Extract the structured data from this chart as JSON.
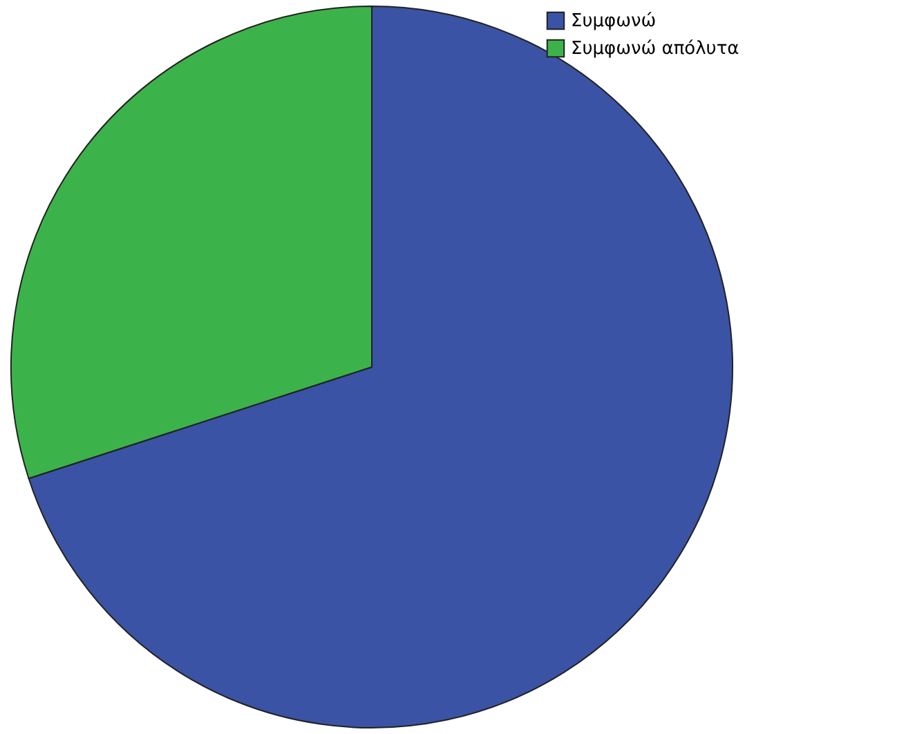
{
  "chart_data": {
    "type": "pie",
    "categories": [
      "Συμφωνώ",
      "Συμφωνώ απόλυτα"
    ],
    "values": [
      70,
      30
    ],
    "colors": [
      "#3a53a4",
      "#3cb34a"
    ],
    "legend": "top right"
  }
}
